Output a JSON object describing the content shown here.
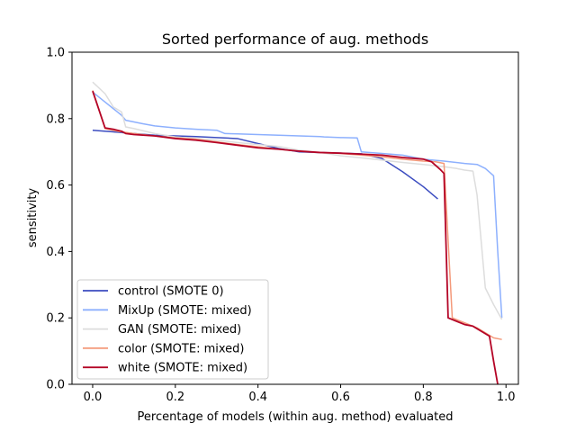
{
  "chart_data": {
    "type": "line",
    "title": "Sorted performance of aug. methods",
    "xlabel": "Percentage of models (within aug. method) evaluated",
    "ylabel": "sensitivity",
    "xlim": [
      -0.05,
      1.03
    ],
    "ylim": [
      0.0,
      1.0
    ],
    "xticks": [
      0.0,
      0.2,
      0.4,
      0.6,
      0.8,
      1.0
    ],
    "xtick_labels": [
      "0.0",
      "0.2",
      "0.4",
      "0.6",
      "0.8",
      "1.0"
    ],
    "yticks": [
      0.0,
      0.2,
      0.4,
      0.6,
      0.8,
      1.0
    ],
    "ytick_labels": [
      "0.0",
      "0.2",
      "0.4",
      "0.6",
      "0.8",
      "1.0"
    ],
    "grid": false,
    "legend_position": "lower-left",
    "series": [
      {
        "name": "control (SMOTE 0)",
        "color": "#3b4cc0",
        "x": [
          0.0,
          0.05,
          0.1,
          0.15,
          0.2,
          0.25,
          0.3,
          0.35,
          0.4,
          0.45,
          0.5,
          0.55,
          0.6,
          0.65,
          0.7,
          0.75,
          0.8,
          0.835
        ],
        "y": [
          0.765,
          0.76,
          0.755,
          0.75,
          0.748,
          0.746,
          0.743,
          0.74,
          0.725,
          0.71,
          0.7,
          0.698,
          0.696,
          0.694,
          0.68,
          0.64,
          0.595,
          0.558
        ]
      },
      {
        "name": "MixUp (SMOTE: mixed)",
        "color": "#8db0fe",
        "x": [
          0.0,
          0.02,
          0.05,
          0.07,
          0.08,
          0.1,
          0.12,
          0.15,
          0.2,
          0.25,
          0.3,
          0.32,
          0.35,
          0.4,
          0.45,
          0.5,
          0.55,
          0.56,
          0.6,
          0.64,
          0.65,
          0.7,
          0.75,
          0.8,
          0.85,
          0.9,
          0.93,
          0.95,
          0.97,
          0.98,
          0.99
        ],
        "y": [
          0.88,
          0.86,
          0.83,
          0.81,
          0.795,
          0.79,
          0.785,
          0.778,
          0.772,
          0.768,
          0.765,
          0.755,
          0.754,
          0.752,
          0.75,
          0.748,
          0.746,
          0.745,
          0.743,
          0.742,
          0.7,
          0.695,
          0.69,
          0.678,
          0.672,
          0.665,
          0.662,
          0.65,
          0.628,
          0.4,
          0.2
        ]
      },
      {
        "name": "GAN (SMOTE: mixed)",
        "color": "#dddddd",
        "x": [
          0.0,
          0.03,
          0.05,
          0.07,
          0.08,
          0.1,
          0.15,
          0.2,
          0.25,
          0.3,
          0.35,
          0.4,
          0.45,
          0.5,
          0.55,
          0.6,
          0.65,
          0.7,
          0.75,
          0.8,
          0.85,
          0.88,
          0.9,
          0.92,
          0.93,
          0.95,
          0.97,
          0.99
        ],
        "y": [
          0.91,
          0.875,
          0.835,
          0.82,
          0.775,
          0.77,
          0.755,
          0.745,
          0.74,
          0.735,
          0.728,
          0.722,
          0.716,
          0.705,
          0.698,
          0.688,
          0.682,
          0.675,
          0.668,
          0.662,
          0.655,
          0.65,
          0.645,
          0.642,
          0.57,
          0.29,
          0.24,
          0.195
        ]
      },
      {
        "name": "color (SMOTE: mixed)",
        "color": "#f49a7b",
        "x": [
          0.0,
          0.03,
          0.06,
          0.1,
          0.15,
          0.2,
          0.25,
          0.3,
          0.35,
          0.4,
          0.45,
          0.5,
          0.55,
          0.6,
          0.65,
          0.7,
          0.75,
          0.8,
          0.83,
          0.85,
          0.87,
          0.9,
          0.93,
          0.95,
          0.97,
          0.99
        ],
        "y": [
          0.885,
          0.77,
          0.762,
          0.755,
          0.748,
          0.742,
          0.738,
          0.73,
          0.722,
          0.715,
          0.708,
          0.702,
          0.698,
          0.695,
          0.69,
          0.685,
          0.678,
          0.672,
          0.67,
          0.665,
          0.2,
          0.185,
          0.17,
          0.155,
          0.14,
          0.135
        ]
      },
      {
        "name": "white (SMOTE: mixed)",
        "color": "#b40426",
        "x": [
          0.0,
          0.03,
          0.05,
          0.07,
          0.08,
          0.1,
          0.15,
          0.2,
          0.25,
          0.3,
          0.35,
          0.4,
          0.45,
          0.5,
          0.55,
          0.6,
          0.65,
          0.7,
          0.75,
          0.8,
          0.82,
          0.84,
          0.85,
          0.86,
          0.88,
          0.9,
          0.92,
          0.94,
          0.96,
          0.97,
          0.98
        ],
        "y": [
          0.883,
          0.772,
          0.768,
          0.762,
          0.755,
          0.752,
          0.748,
          0.74,
          0.735,
          0.728,
          0.72,
          0.712,
          0.708,
          0.702,
          0.698,
          0.696,
          0.693,
          0.69,
          0.683,
          0.678,
          0.67,
          0.648,
          0.635,
          0.2,
          0.19,
          0.18,
          0.175,
          0.16,
          0.145,
          0.07,
          0.0
        ]
      }
    ]
  }
}
